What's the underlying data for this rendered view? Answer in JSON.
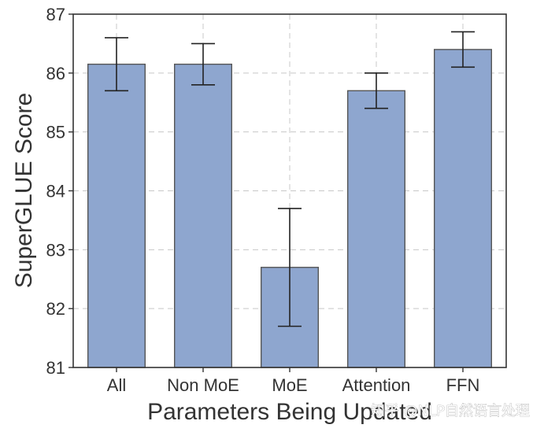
{
  "chart_data": {
    "type": "bar",
    "title": "",
    "xlabel": "Parameters Being Updated",
    "ylabel": "SuperGLUE Score",
    "categories": [
      "All",
      "Non MoE",
      "MoE",
      "Attention",
      "FFN"
    ],
    "values": [
      86.15,
      86.15,
      82.7,
      85.7,
      86.4
    ],
    "error_low": [
      85.7,
      85.8,
      81.7,
      85.4,
      86.1
    ],
    "error_high": [
      86.6,
      86.5,
      83.7,
      86.0,
      86.7
    ],
    "ylim": [
      81,
      87
    ],
    "yticks": [
      "81",
      "82",
      "83",
      "84",
      "85",
      "86",
      "87"
    ],
    "grid": true,
    "bar_color": "#8ea6cf",
    "bar_edge_color": "#555555"
  },
  "watermark": "知乎 @NLP自然语言处理"
}
